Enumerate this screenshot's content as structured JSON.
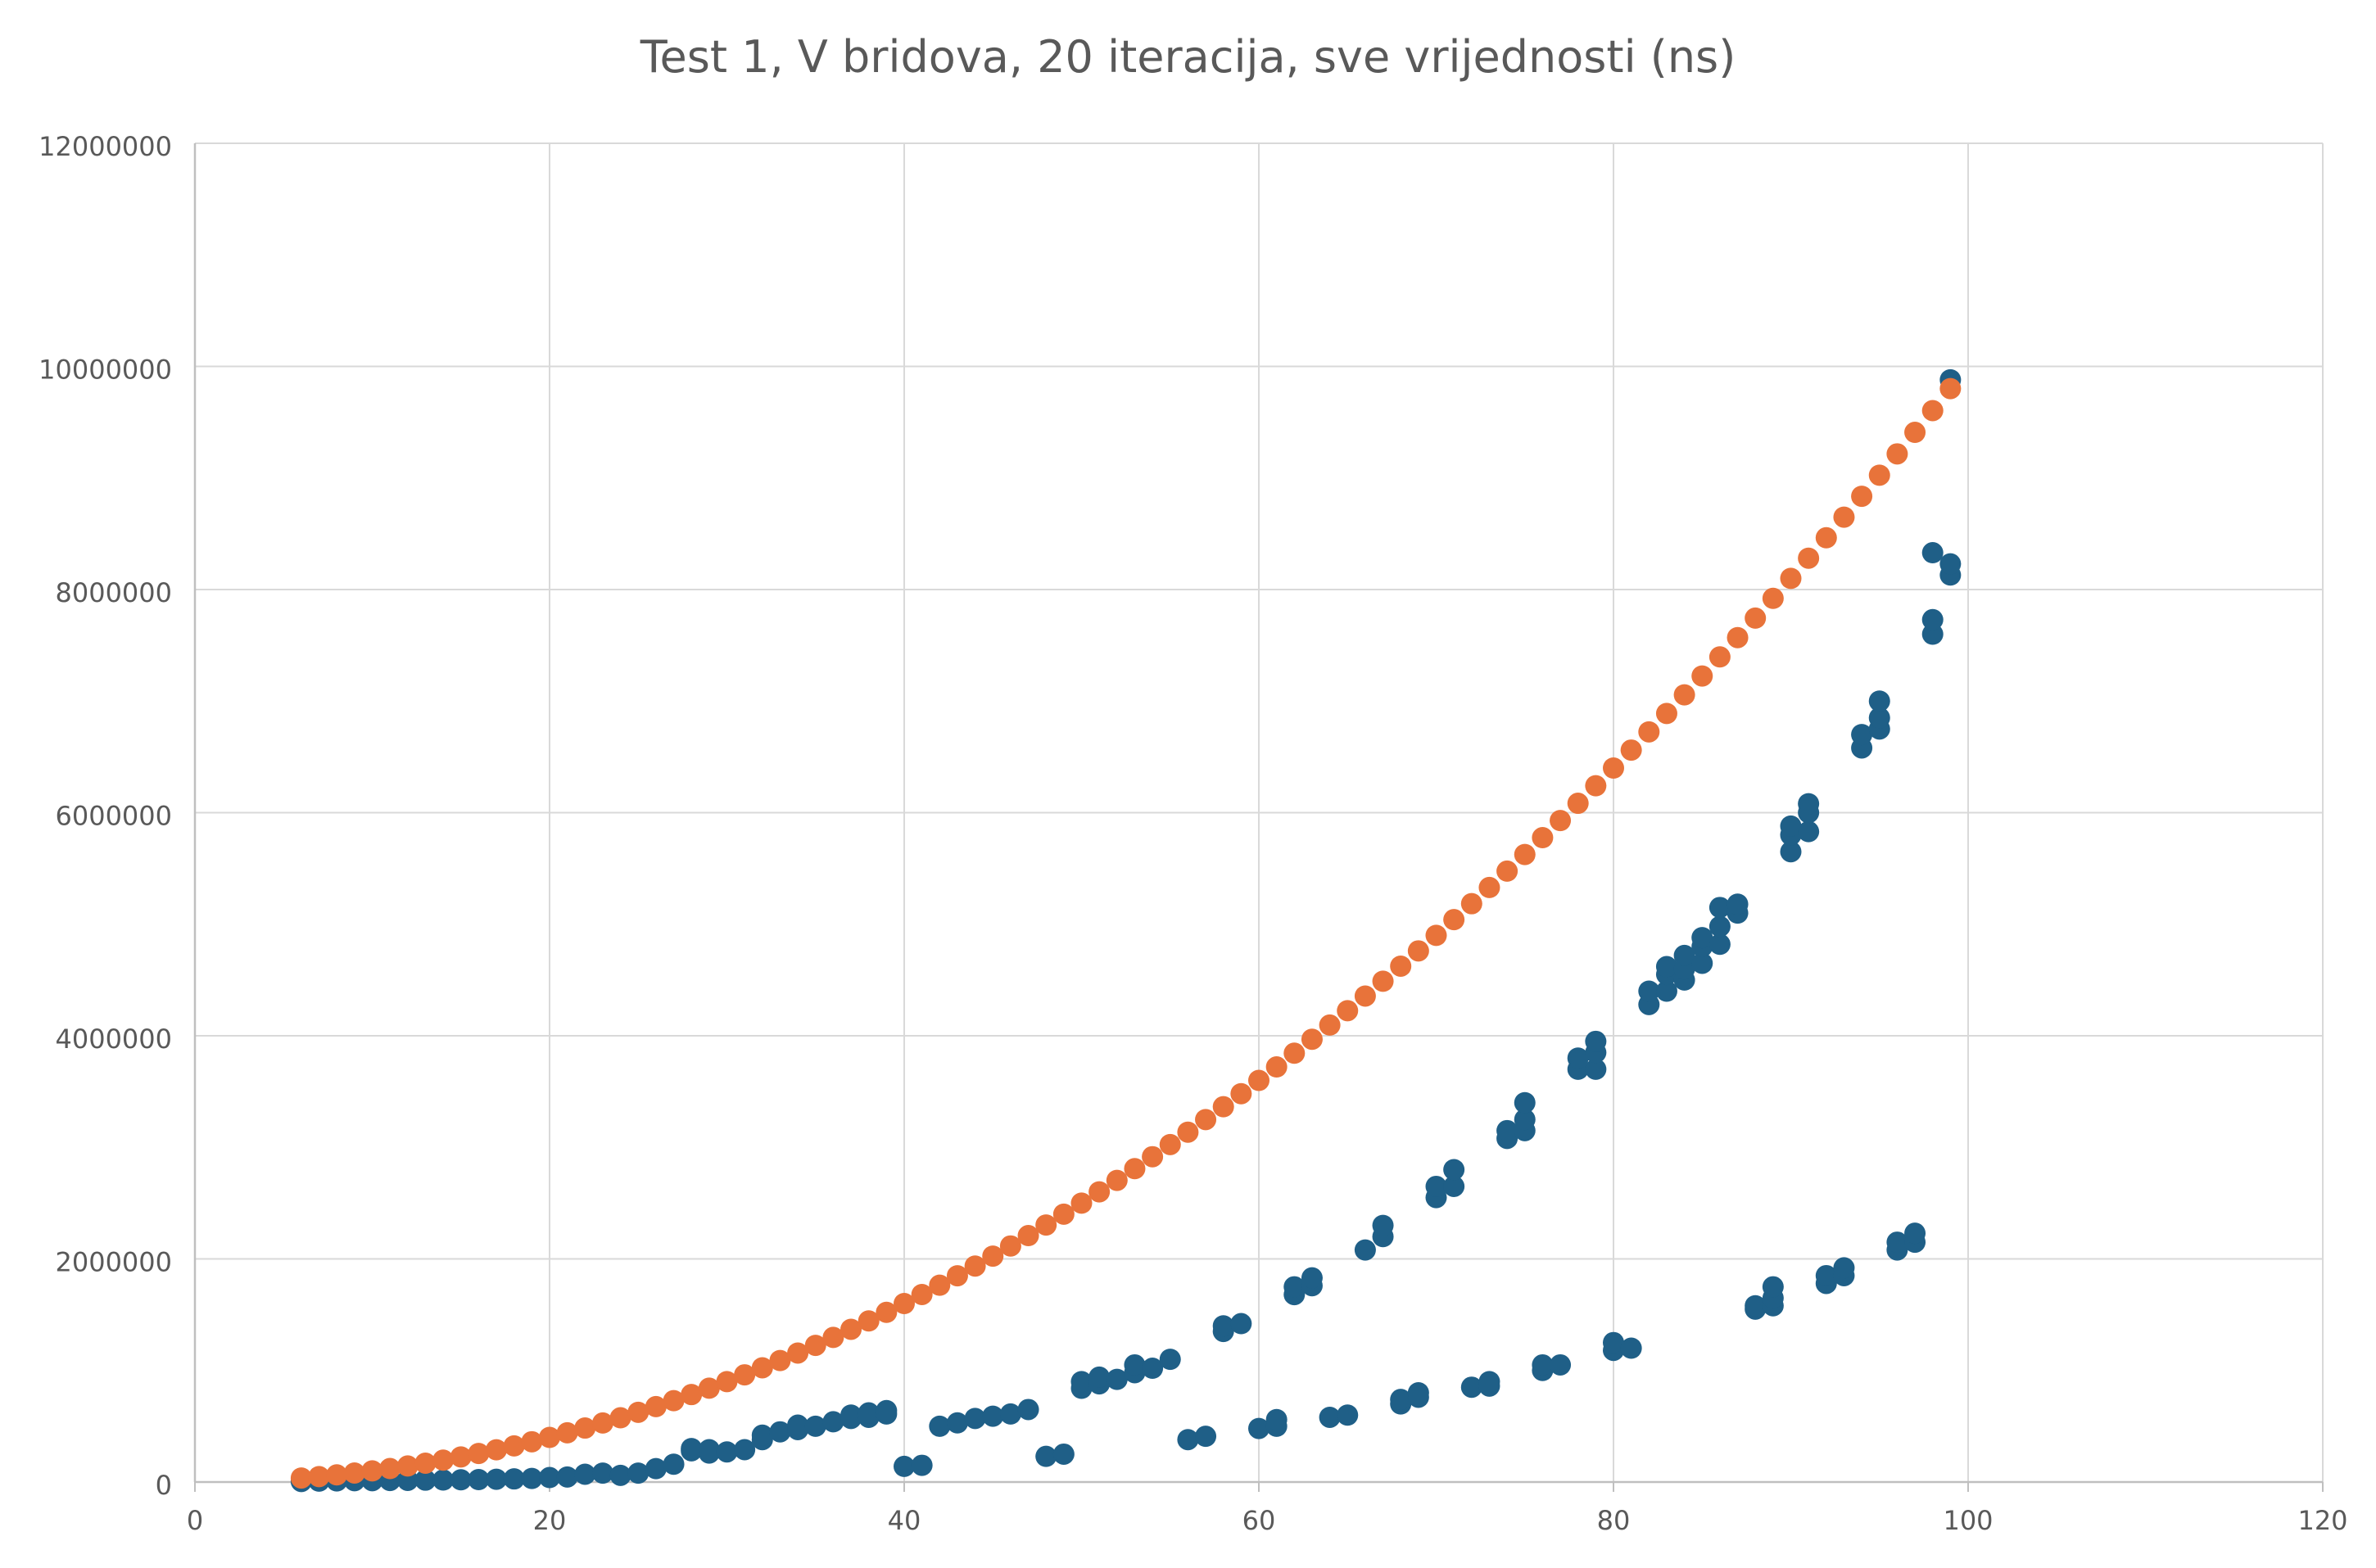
{
  "chart_data": {
    "type": "scatter",
    "title": "Test 1, V bridova, 20 iteracija, sve vrijednosti (ns)",
    "xlabel": "",
    "ylabel": "",
    "xlim": [
      0,
      120
    ],
    "ylim": [
      0,
      12000000
    ],
    "xticks": [
      "0",
      "20",
      "40",
      "60",
      "80",
      "100",
      "120"
    ],
    "yticks": [
      "0",
      "2000000",
      "4000000",
      "6000000",
      "8000000",
      "10000000",
      "12000000"
    ],
    "grid": true,
    "legend": "none",
    "series": [
      {
        "color": "#1f5f87",
        "points": [
          [
            6,
            5000
          ],
          [
            7,
            8000
          ],
          [
            8,
            10000
          ],
          [
            9,
            12000
          ],
          [
            10,
            12000
          ],
          [
            11,
            14000
          ],
          [
            12,
            15000
          ],
          [
            13,
            17000
          ],
          [
            14,
            18000
          ],
          [
            15,
            20000
          ],
          [
            16,
            22000
          ],
          [
            17,
            25000
          ],
          [
            18,
            28000
          ],
          [
            19,
            32000
          ],
          [
            20,
            40000
          ],
          [
            21,
            45000
          ],
          [
            22,
            70000
          ],
          [
            23,
            80000
          ],
          [
            24,
            60000
          ],
          [
            25,
            80000
          ],
          [
            26,
            120000
          ],
          [
            27,
            160000
          ],
          [
            28,
            280000
          ],
          [
            28,
            300000
          ],
          [
            29,
            260000
          ],
          [
            29,
            290000
          ],
          [
            30,
            270000
          ],
          [
            31,
            290000
          ],
          [
            32,
            380000
          ],
          [
            32,
            420000
          ],
          [
            33,
            450000
          ],
          [
            34,
            470000
          ],
          [
            34,
            510000
          ],
          [
            35,
            500000
          ],
          [
            36,
            540000
          ],
          [
            37,
            570000
          ],
          [
            37,
            600000
          ],
          [
            38,
            580000
          ],
          [
            38,
            620000
          ],
          [
            39,
            610000
          ],
          [
            39,
            640000
          ],
          [
            40,
            140000
          ],
          [
            41,
            150000
          ],
          [
            42,
            500000
          ],
          [
            43,
            530000
          ],
          [
            44,
            570000
          ],
          [
            45,
            590000
          ],
          [
            46,
            610000
          ],
          [
            47,
            650000
          ],
          [
            48,
            230000
          ],
          [
            49,
            250000
          ],
          [
            50,
            840000
          ],
          [
            50,
            900000
          ],
          [
            51,
            880000
          ],
          [
            51,
            940000
          ],
          [
            52,
            920000
          ],
          [
            53,
            980000
          ],
          [
            53,
            1050000
          ],
          [
            54,
            1020000
          ],
          [
            55,
            1100000
          ],
          [
            56,
            380000
          ],
          [
            57,
            410000
          ],
          [
            58,
            1350000
          ],
          [
            58,
            1400000
          ],
          [
            59,
            1420000
          ],
          [
            60,
            480000
          ],
          [
            61,
            500000
          ],
          [
            61,
            560000
          ],
          [
            62,
            1680000
          ],
          [
            62,
            1750000
          ],
          [
            63,
            1760000
          ],
          [
            63,
            1830000
          ],
          [
            64,
            580000
          ],
          [
            65,
            600000
          ],
          [
            66,
            2080000
          ],
          [
            67,
            2200000
          ],
          [
            67,
            2300000
          ],
          [
            68,
            700000
          ],
          [
            68,
            740000
          ],
          [
            69,
            760000
          ],
          [
            69,
            800000
          ],
          [
            70,
            2550000
          ],
          [
            70,
            2650000
          ],
          [
            71,
            2650000
          ],
          [
            71,
            2800000
          ],
          [
            72,
            850000
          ],
          [
            73,
            860000
          ],
          [
            73,
            900000
          ],
          [
            74,
            3080000
          ],
          [
            74,
            3150000
          ],
          [
            75,
            3150000
          ],
          [
            75,
            3250000
          ],
          [
            75,
            3400000
          ],
          [
            76,
            1000000
          ],
          [
            76,
            1050000
          ],
          [
            77,
            1050000
          ],
          [
            78,
            3700000
          ],
          [
            78,
            3800000
          ],
          [
            79,
            3700000
          ],
          [
            79,
            3850000
          ],
          [
            79,
            3950000
          ],
          [
            80,
            1180000
          ],
          [
            80,
            1250000
          ],
          [
            81,
            1200000
          ],
          [
            82,
            4280000
          ],
          [
            82,
            4400000
          ],
          [
            83,
            4400000
          ],
          [
            83,
            4550000
          ],
          [
            83,
            4620000
          ],
          [
            84,
            4500000
          ],
          [
            84,
            4600000
          ],
          [
            84,
            4720000
          ],
          [
            85,
            4650000
          ],
          [
            85,
            4800000
          ],
          [
            85,
            4880000
          ],
          [
            86,
            4820000
          ],
          [
            86,
            4980000
          ],
          [
            86,
            5150000
          ],
          [
            87,
            5100000
          ],
          [
            87,
            5180000
          ],
          [
            88,
            1550000
          ],
          [
            88,
            1580000
          ],
          [
            89,
            1580000
          ],
          [
            89,
            1650000
          ],
          [
            89,
            1750000
          ],
          [
            90,
            5650000
          ],
          [
            90,
            5800000
          ],
          [
            90,
            5880000
          ],
          [
            91,
            5830000
          ],
          [
            91,
            6000000
          ],
          [
            91,
            6080000
          ],
          [
            92,
            1780000
          ],
          [
            92,
            1850000
          ],
          [
            93,
            1850000
          ],
          [
            93,
            1920000
          ],
          [
            94,
            6580000
          ],
          [
            94,
            6700000
          ],
          [
            95,
            6750000
          ],
          [
            95,
            6850000
          ],
          [
            95,
            7000000
          ],
          [
            96,
            2080000
          ],
          [
            96,
            2150000
          ],
          [
            97,
            2150000
          ],
          [
            97,
            2230000
          ],
          [
            98,
            7600000
          ],
          [
            98,
            7730000
          ],
          [
            98,
            8330000
          ],
          [
            99,
            8130000
          ],
          [
            99,
            8230000
          ],
          [
            99,
            9880000
          ]
        ]
      },
      {
        "color": "#e8733a",
        "x": [
          6,
          7,
          8,
          9,
          10,
          11,
          12,
          13,
          14,
          15,
          16,
          17,
          18,
          19,
          20,
          21,
          22,
          23,
          24,
          25,
          26,
          27,
          28,
          29,
          30,
          31,
          32,
          33,
          34,
          35,
          36,
          37,
          38,
          39,
          40,
          41,
          42,
          43,
          44,
          45,
          46,
          47,
          48,
          49,
          50,
          51,
          52,
          53,
          54,
          55,
          56,
          57,
          58,
          59,
          60,
          61,
          62,
          63,
          64,
          65,
          66,
          67,
          68,
          69,
          70,
          71,
          72,
          73,
          74,
          75,
          76,
          77,
          78,
          79,
          80,
          81,
          82,
          83,
          84,
          85,
          86,
          87,
          88,
          89,
          90,
          91,
          92,
          93,
          94,
          95,
          96,
          97,
          98,
          99
        ],
        "formula": "y = 1000 * x^2 (one point per integer x from 6 to 99)"
      }
    ]
  }
}
